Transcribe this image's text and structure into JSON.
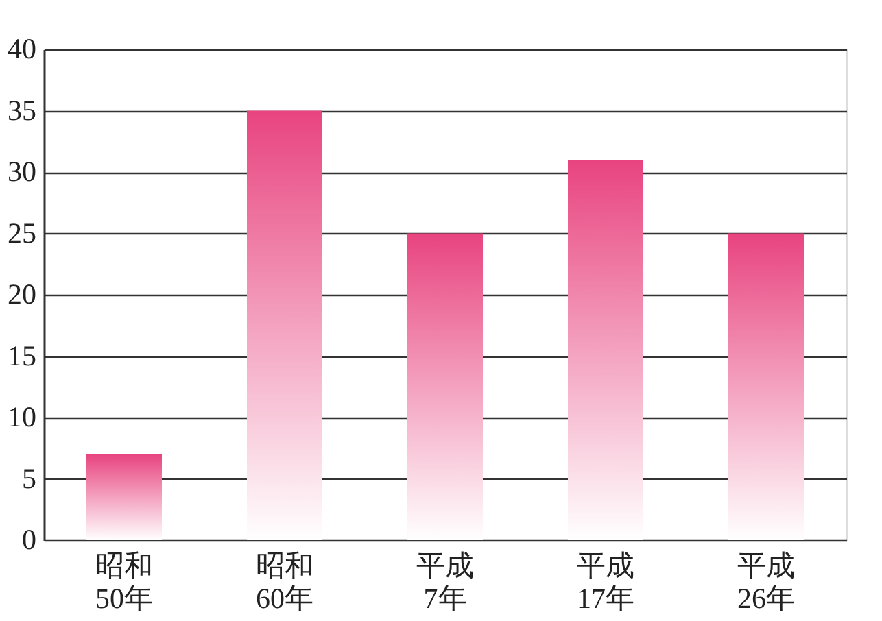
{
  "chart_data": {
    "type": "bar",
    "categories": [
      "昭和\n50年",
      "昭和\n60年",
      "平成\n7年",
      "平成\n17年",
      "平成\n26年"
    ],
    "values": [
      7,
      35,
      25,
      31,
      25
    ],
    "color": "#e8447f",
    "ylim": [
      0,
      40
    ],
    "yticks": [
      0,
      5,
      10,
      15,
      20,
      25,
      30,
      35,
      40
    ],
    "grid": "y"
  }
}
